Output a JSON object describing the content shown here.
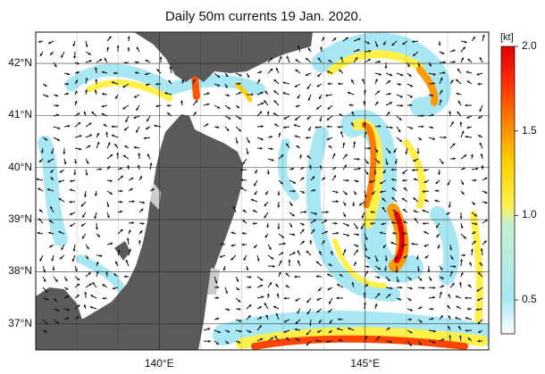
{
  "title": "Daily 50m currents 19 Jan. 2020.",
  "map": {
    "lon_range": [
      137,
      148
    ],
    "lat_range": [
      36.5,
      42.6
    ],
    "grid": true,
    "lat_labels": [
      "42°N",
      "41°N",
      "40°N",
      "39°N",
      "38°N",
      "37°N"
    ],
    "lat_values": [
      42,
      41,
      40,
      39,
      38,
      37
    ],
    "lon_labels": [
      "140°E",
      "145°E"
    ],
    "lon_values": [
      140,
      145
    ],
    "land_color": "#555555",
    "sea_color": "#ffffff"
  },
  "colorbar": {
    "unit": "[kt]",
    "min": 0.3,
    "max": 2.0,
    "tick_labels": [
      "2.0",
      "1.5",
      "1.0",
      "0.5"
    ],
    "tick_values": [
      2.0,
      1.5,
      1.0,
      0.5
    ],
    "colors": [
      "#ffffff",
      "#a8e8f4",
      "#fff04a",
      "#ffd000",
      "#ff8c00",
      "#ff2a00",
      "#e00000"
    ]
  },
  "legend_placement": "right"
}
